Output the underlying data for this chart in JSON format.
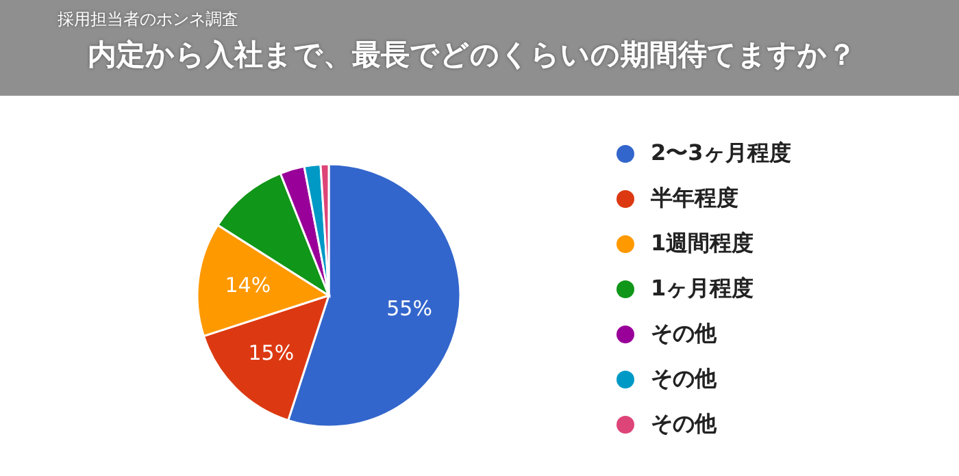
{
  "chart_data": {
    "type": "pie",
    "title": "内定から入社まで、最長でどのくらいの期間待てますか？",
    "subtitle": "採用担当者のホンネ調査",
    "categories": [
      "2〜3ヶ月程度",
      "半年程度",
      "1週間程度",
      "1ヶ月程度",
      "その他",
      "その他",
      "その他"
    ],
    "values": [
      55,
      15,
      14,
      10,
      3,
      2,
      1
    ],
    "colors": [
      "#3366cc",
      "#dc3912",
      "#ff9900",
      "#109618",
      "#990099",
      "#0099c6",
      "#dd4477"
    ],
    "value_labels": [
      "55%",
      "15%",
      "14%",
      null,
      null,
      null,
      null
    ],
    "legend": "right"
  }
}
